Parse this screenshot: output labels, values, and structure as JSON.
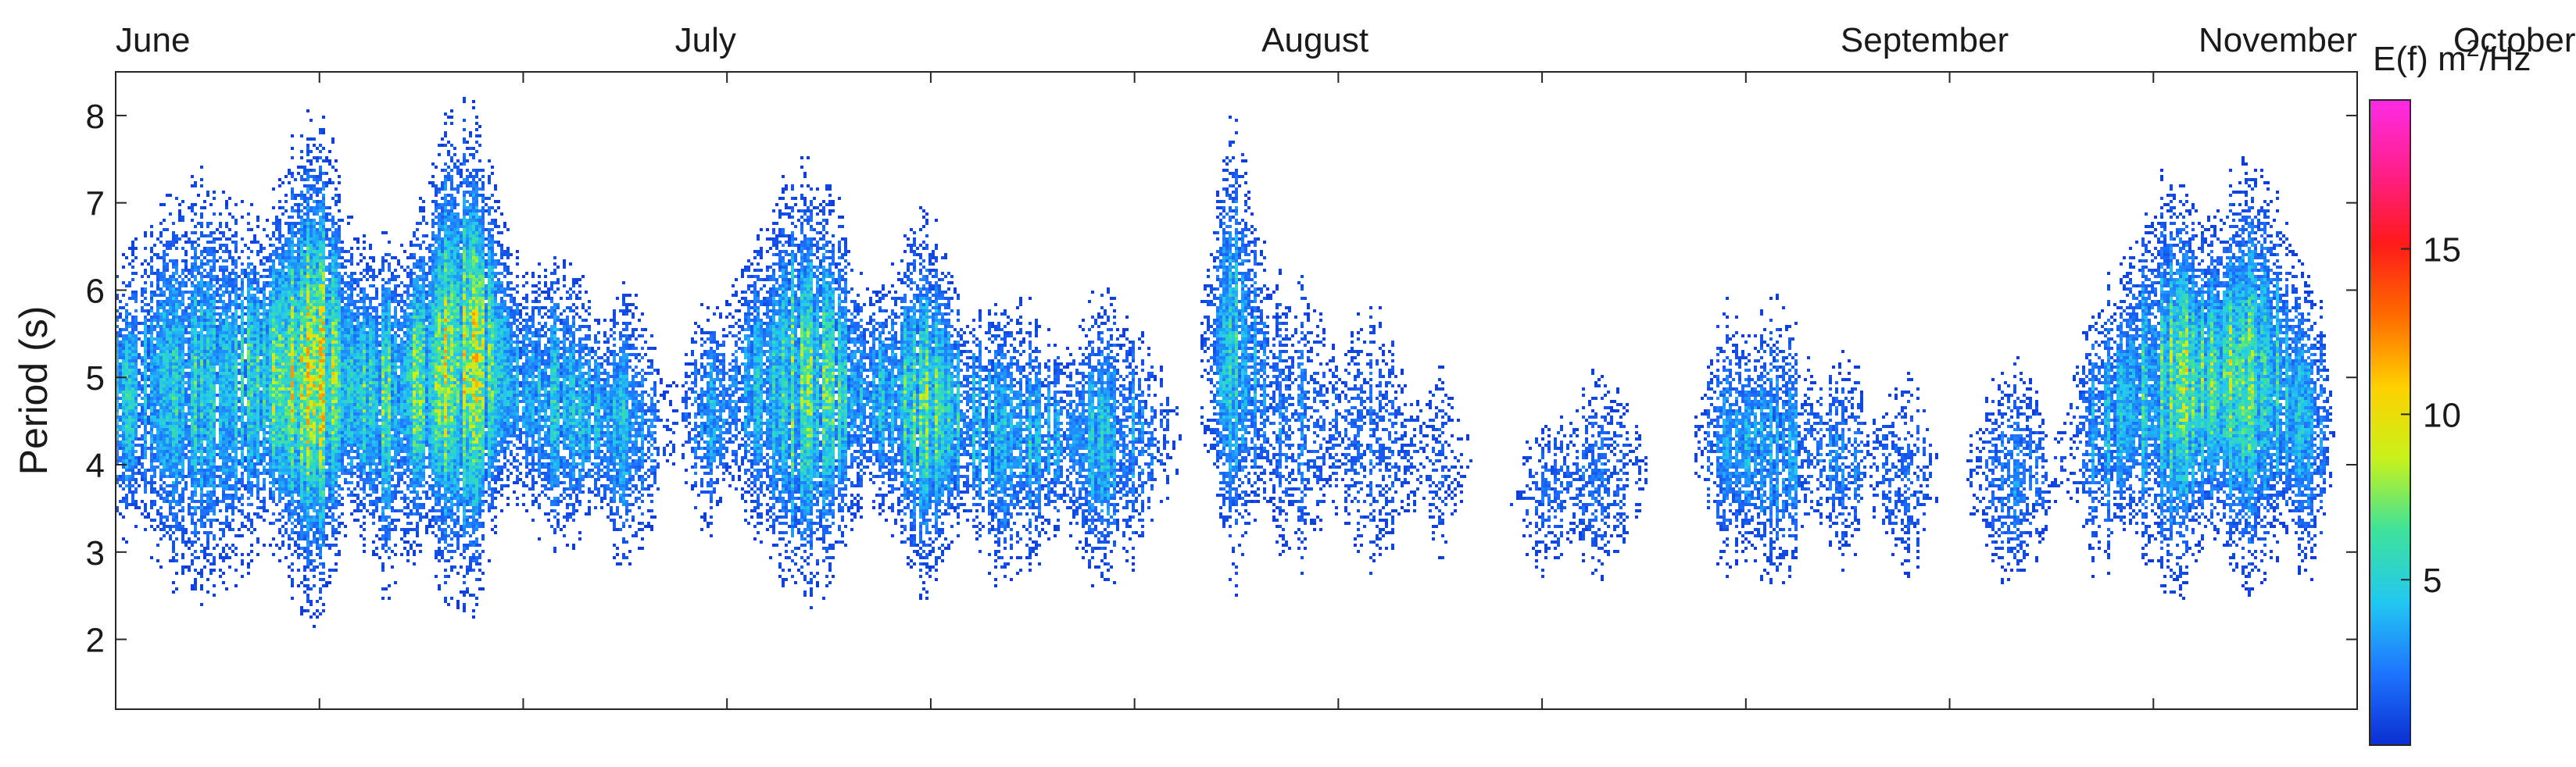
{
  "chart_data": {
    "type": "heatmap",
    "ylabel": "Period (s)",
    "yticks": [
      2,
      3,
      4,
      5,
      6,
      7,
      8
    ],
    "ylim": [
      1.2,
      8.5
    ],
    "month_labels": [
      "June",
      "July",
      "August",
      "September",
      "October",
      "November"
    ],
    "colorbar": {
      "title_prefix": "E(f) m",
      "title_sup": "2",
      "title_suffix": "/Hz",
      "ticks": [
        5,
        10,
        15
      ],
      "range": [
        0,
        19.5
      ],
      "stops": [
        "#0a2fd0",
        "#1e74ff",
        "#22c8f0",
        "#3ee29a",
        "#c8f21a",
        "#ffd000",
        "#ff6a00",
        "#ff1a1a",
        "#ff1f8a",
        "#ff2be6"
      ]
    },
    "grid": false,
    "events": [
      {
        "x": 0.3,
        "w": 1.0,
        "c": 4.6,
        "s": 0.5,
        "i": 0.3
      },
      {
        "x": 4.5,
        "w": 7.5,
        "c": 4.9,
        "s": 0.8,
        "i": 0.55
      },
      {
        "x": 10.0,
        "w": 3.5,
        "c": 5.1,
        "s": 0.9,
        "i": 0.95
      },
      {
        "x": 14.0,
        "w": 3.0,
        "c": 4.6,
        "s": 0.7,
        "i": 0.55
      },
      {
        "x": 17.5,
        "w": 3.5,
        "c": 5.2,
        "s": 0.9,
        "i": 1.0
      },
      {
        "x": 22.5,
        "w": 3.5,
        "c": 4.7,
        "s": 0.6,
        "i": 0.5
      },
      {
        "x": 26.0,
        "w": 2.5,
        "c": 4.4,
        "s": 0.6,
        "i": 0.5
      },
      {
        "x": 30.0,
        "w": 1.5,
        "c": 4.5,
        "s": 0.5,
        "i": 0.35
      },
      {
        "x": 35.0,
        "w": 5.0,
        "c": 4.9,
        "s": 0.8,
        "i": 0.75
      },
      {
        "x": 41.0,
        "w": 3.5,
        "c": 4.7,
        "s": 0.7,
        "i": 0.7
      },
      {
        "x": 45.5,
        "w": 4.0,
        "c": 4.3,
        "s": 0.6,
        "i": 0.45
      },
      {
        "x": 50.5,
        "w": 4.0,
        "c": 4.3,
        "s": 0.6,
        "i": 0.45
      },
      {
        "x": 57.0,
        "w": 2.0,
        "c": 5.3,
        "s": 0.9,
        "i": 0.55
      },
      {
        "x": 60.0,
        "w": 3.0,
        "c": 4.5,
        "s": 0.7,
        "i": 0.3
      },
      {
        "x": 64.0,
        "w": 2.5,
        "c": 4.3,
        "s": 0.7,
        "i": 0.25
      },
      {
        "x": 67.5,
        "w": 2.0,
        "c": 4.0,
        "s": 0.5,
        "i": 0.2
      },
      {
        "x": 72.5,
        "w": 2.5,
        "c": 3.6,
        "s": 0.4,
        "i": 0.15
      },
      {
        "x": 75.5,
        "w": 3.0,
        "c": 3.9,
        "s": 0.5,
        "i": 0.25
      },
      {
        "x": 82.0,
        "w": 2.0,
        "c": 4.3,
        "s": 0.6,
        "i": 0.35
      },
      {
        "x": 84.5,
        "w": 3.0,
        "c": 4.2,
        "s": 0.6,
        "i": 0.4
      },
      {
        "x": 88.0,
        "w": 2.0,
        "c": 4.1,
        "s": 0.5,
        "i": 0.3
      },
      {
        "x": 91.0,
        "w": 2.0,
        "c": 3.9,
        "s": 0.5,
        "i": 0.25
      },
      {
        "x": 96.5,
        "w": 3.0,
        "c": 3.9,
        "s": 0.5,
        "i": 0.3
      },
      {
        "x": 101.0,
        "w": 2.0,
        "c": 4.3,
        "s": 0.6,
        "i": 0.35
      },
      {
        "x": 104.5,
        "w": 4.0,
        "c": 4.9,
        "s": 0.8,
        "i": 0.7
      },
      {
        "x": 108.5,
        "w": 4.0,
        "c": 5.0,
        "s": 0.8,
        "i": 0.7
      },
      {
        "x": 111.5,
        "w": 1.5,
        "c": 4.2,
        "s": 0.6,
        "i": 0.35
      }
    ]
  }
}
